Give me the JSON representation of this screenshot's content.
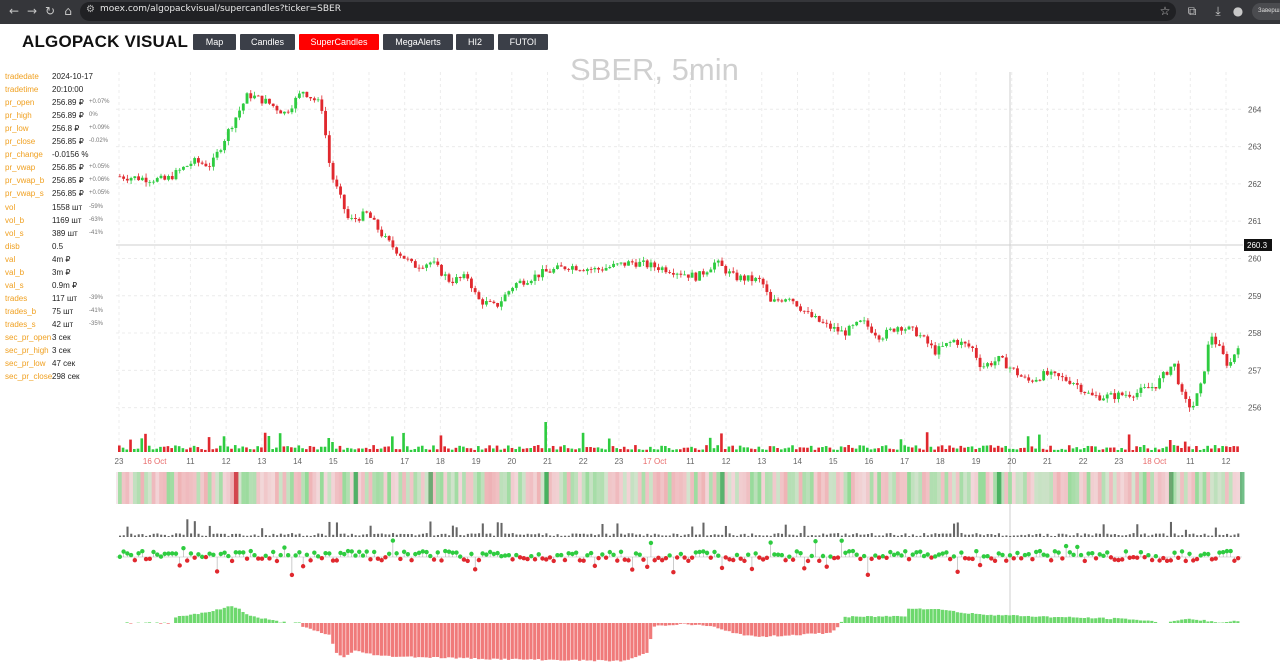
{
  "browser": {
    "url": "moex.com/algopackvisual/supercandles?ticker=SBER",
    "profile_label": "Завершить"
  },
  "app": {
    "logo": "ALGOPACK VISUAL",
    "menu": [
      {
        "label": "Map",
        "active": false
      },
      {
        "label": "Candles",
        "active": false
      },
      {
        "label": "SuperCandles",
        "active": true
      },
      {
        "label": "MegaAlerts",
        "active": false
      },
      {
        "label": "HI2",
        "active": false
      },
      {
        "label": "FUTOI",
        "active": false
      }
    ],
    "accent_color": "#ff0000"
  },
  "info": [
    {
      "key": "tradedate",
      "value": "2024-10-17",
      "pct": ""
    },
    {
      "key": "tradetime",
      "value": "20:10:00",
      "pct": ""
    },
    {
      "key": "pr_open",
      "value": "256.89 ₽",
      "pct": "+0.07%"
    },
    {
      "key": "pr_high",
      "value": "256.89 ₽",
      "pct": "0%"
    },
    {
      "key": "pr_low",
      "value": "256.8 ₽",
      "pct": "+0.09%"
    },
    {
      "key": "pr_close",
      "value": "256.85 ₽",
      "pct": "-0.02%"
    },
    {
      "key": "pr_change",
      "value": "-0.0156 %",
      "pct": ""
    },
    {
      "key": "pr_vwap",
      "value": "256.85 ₽",
      "pct": "+0.05%"
    },
    {
      "key": "pr_vwap_b",
      "value": "256.85 ₽",
      "pct": "+0.06%"
    },
    {
      "key": "pr_vwap_s",
      "value": "256.85 ₽",
      "pct": "+0.05%"
    },
    {
      "key": "vol",
      "value": "1558 шт",
      "pct": "-59%"
    },
    {
      "key": "vol_b",
      "value": "1169 шт",
      "pct": "-63%"
    },
    {
      "key": "vol_s",
      "value": "389 шт",
      "pct": "-41%"
    },
    {
      "key": "disb",
      "value": "0.5",
      "pct": ""
    },
    {
      "key": "val",
      "value": "4m ₽",
      "pct": ""
    },
    {
      "key": "val_b",
      "value": "3m ₽",
      "pct": ""
    },
    {
      "key": "val_s",
      "value": "0.9m ₽",
      "pct": ""
    },
    {
      "key": "trades",
      "value": "117 шт",
      "pct": "-39%"
    },
    {
      "key": "trades_b",
      "value": "75 шт",
      "pct": "-41%"
    },
    {
      "key": "trades_s",
      "value": "42 шт",
      "pct": "-35%"
    },
    {
      "key": "sec_pr_open",
      "value": "3 сек",
      "pct": ""
    },
    {
      "key": "sec_pr_high",
      "value": "3 сек",
      "pct": ""
    },
    {
      "key": "sec_pr_low",
      "value": "47 сек",
      "pct": ""
    },
    {
      "key": "sec_pr_close",
      "value": "298 сек",
      "pct": ""
    }
  ],
  "chart_data": {
    "type": "candlestick",
    "title": "SBER, 5min",
    "y_ticks": [
      "256",
      "257",
      "258",
      "259",
      "260",
      "261",
      "262",
      "263",
      "264"
    ],
    "ylim": [
      255.4,
      265.0
    ],
    "crosshair_price": "260.3",
    "x_ticks": [
      "23",
      "16 Oct",
      "11",
      "12",
      "13",
      "14",
      "15",
      "16",
      "17",
      "18",
      "19",
      "20",
      "21",
      "22",
      "23",
      "17 Oct",
      "11",
      "12",
      "13",
      "14",
      "15",
      "16",
      "17",
      "18",
      "19",
      "20",
      "21",
      "22",
      "23",
      "18 Oct",
      "11",
      "12"
    ],
    "date_ticks": [
      "16 Oct",
      "17 Oct",
      "18 Oct"
    ],
    "price_path": [
      [
        0,
        262.2
      ],
      [
        5,
        262.1
      ],
      [
        8,
        262.6
      ],
      [
        10,
        262.5
      ],
      [
        12,
        263.5
      ],
      [
        14,
        264.4
      ],
      [
        16,
        264.2
      ],
      [
        18,
        263.9
      ],
      [
        20,
        264.5
      ],
      [
        22,
        264.1
      ],
      [
        23,
        262.3
      ],
      [
        25,
        261.0
      ],
      [
        27,
        261.2
      ],
      [
        29,
        260.5
      ],
      [
        32,
        259.8
      ],
      [
        34,
        259.9
      ],
      [
        36,
        259.4
      ],
      [
        38,
        259.5
      ],
      [
        39,
        258.9
      ],
      [
        41,
        258.7
      ],
      [
        43,
        259.3
      ],
      [
        46,
        259.6
      ],
      [
        49,
        259.8
      ],
      [
        52,
        259.7
      ],
      [
        56,
        259.9
      ],
      [
        60,
        259.7
      ],
      [
        63,
        259.5
      ],
      [
        65,
        259.9
      ],
      [
        67,
        259.5
      ],
      [
        70,
        259.4
      ],
      [
        71,
        258.8
      ],
      [
        73,
        259.0
      ],
      [
        75,
        258.5
      ],
      [
        77,
        258.2
      ],
      [
        79,
        258.0
      ],
      [
        81,
        258.3
      ],
      [
        83,
        257.9
      ],
      [
        85,
        258.2
      ],
      [
        87,
        258.0
      ],
      [
        89,
        257.5
      ],
      [
        91,
        257.8
      ],
      [
        93,
        257.6
      ],
      [
        94,
        257.1
      ],
      [
        96,
        257.3
      ],
      [
        99,
        256.7
      ],
      [
        101,
        256.9
      ],
      [
        104,
        256.7
      ],
      [
        106,
        256.3
      ],
      [
        108,
        256.3
      ],
      [
        111,
        256.4
      ],
      [
        113,
        256.6
      ],
      [
        115,
        257.2
      ],
      [
        116,
        256.2
      ],
      [
        117,
        256.0
      ],
      [
        118,
        256.6
      ],
      [
        119,
        258.0
      ],
      [
        121,
        257.1
      ],
      [
        122,
        257.7
      ]
    ]
  }
}
